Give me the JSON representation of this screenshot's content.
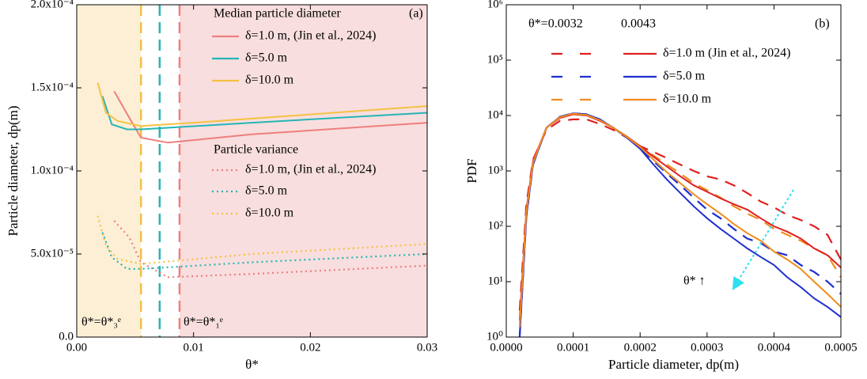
{
  "chart_data": [
    {
      "type": "line",
      "x_label": "θ*",
      "y_label": "Particle diameter, dp(m)",
      "xlim": [
        0,
        0.03
      ],
      "ylim": [
        0,
        0.0002
      ],
      "xticks": [
        {
          "value": 0,
          "label": "0.00"
        },
        0.01,
        0.02,
        0.03
      ],
      "yticks": [
        {
          "value": 0,
          "label": "0.0"
        },
        {
          "value": 5e-05,
          "label": "5.0x10⁻⁵"
        },
        {
          "value": 0.0001,
          "label": "1.0x10⁻⁴"
        },
        {
          "value": 0.00015,
          "label": "1.5x10⁻⁴"
        },
        {
          "value": 0.0002,
          "label": "2.0x10⁻⁴"
        }
      ],
      "legend_groups": [
        "Median particle diameter",
        "Particle variance"
      ],
      "annotations": [
        "(a)",
        "θ*=θ*₃ᵉ",
        "θ*=θ*₁ᵉ"
      ],
      "regions": [
        {
          "x": [
            0,
            0.0055
          ],
          "color": "#fcefd6"
        },
        {
          "x": [
            0.0088,
            0.03
          ],
          "color": "#f8dede"
        }
      ],
      "vlines": [
        {
          "x": 0.0055,
          "color": "#f2c04a"
        },
        {
          "x": 0.0071,
          "color": "#26b5b5"
        },
        {
          "x": 0.0088,
          "color": "#ee7f7f"
        }
      ],
      "series": [
        {
          "name": "δ=1.0 m, (Jin et al., 2024)",
          "color": "#ee7f7f",
          "dash": "solid",
          "group": 0,
          "x": [
            0.0032,
            0.0045,
            0.0055,
            0.0078,
            0.015,
            0.03
          ],
          "values": [
            0.000148,
            0.000132,
            0.00012,
            0.000117,
            0.000122,
            0.000129
          ]
        },
        {
          "name": "δ=5.0 m",
          "color": "#26b5b5",
          "dash": "solid",
          "group": 0,
          "x": [
            0.0022,
            0.003,
            0.0043,
            0.0055,
            0.015,
            0.03
          ],
          "values": [
            0.000145,
            0.000128,
            0.000125,
            0.000125,
            0.000129,
            0.000135
          ]
        },
        {
          "name": "δ=10.0 m",
          "color": "#f5c242",
          "dash": "solid",
          "group": 0,
          "x": [
            0.0018,
            0.0025,
            0.0035,
            0.0055,
            0.01,
            0.03
          ],
          "values": [
            0.000153,
            0.000135,
            0.00013,
            0.000127,
            0.000129,
            0.000139
          ]
        },
        {
          "name": "δ=1.0 m, (Jin et al., 2024)",
          "color": "#ee7f7f",
          "dash": "dot",
          "group": 1,
          "x": [
            0.0032,
            0.0045,
            0.0055,
            0.0078,
            0.015,
            0.03
          ],
          "values": [
            7e-05,
            6e-05,
            4.5e-05,
            3.6e-05,
            3.8e-05,
            4.3e-05
          ]
        },
        {
          "name": "δ=5.0 m",
          "color": "#26b5b5",
          "dash": "dot",
          "group": 1,
          "x": [
            0.0022,
            0.003,
            0.0043,
            0.0055,
            0.015,
            0.03
          ],
          "values": [
            6.3e-05,
            4.8e-05,
            4.1e-05,
            4.1e-05,
            4.5e-05,
            5e-05
          ]
        },
        {
          "name": "δ=10.0 m",
          "color": "#f5c242",
          "dash": "dot",
          "group": 1,
          "x": [
            0.0018,
            0.0025,
            0.0035,
            0.0055,
            0.015,
            0.03
          ],
          "values": [
            7.3e-05,
            5.5e-05,
            4.7e-05,
            4.4e-05,
            5e-05,
            5.6e-05
          ]
        }
      ]
    },
    {
      "type": "line",
      "log_y": true,
      "x_label": "Particle  diameter, dp(m)",
      "y_label": "PDF",
      "xlim": [
        0,
        0.0005
      ],
      "ylim": [
        1,
        1000000
      ],
      "xticks": [
        {
          "value": 0,
          "label": "0.0000"
        },
        {
          "value": 0.0001,
          "label": "0.0001"
        },
        {
          "value": 0.0002,
          "label": "0.0002"
        },
        {
          "value": 0.0003,
          "label": "0.0003"
        },
        {
          "value": 0.0004,
          "label": "0.0004"
        },
        {
          "value": 0.0005,
          "label": "0.0005"
        }
      ],
      "yticks": [
        {
          "value": 1,
          "label": "10⁰"
        },
        {
          "value": 10,
          "label": "10¹"
        },
        {
          "value": 100,
          "label": "10²"
        },
        {
          "value": 1000,
          "label": "10³"
        },
        {
          "value": 10000,
          "label": "10⁴"
        },
        {
          "value": 100000,
          "label": "10⁵"
        },
        {
          "value": 1000000,
          "label": "10⁶"
        }
      ],
      "legend_headers": [
        "θ*=0.0032",
        "0.0043"
      ],
      "annotations": [
        "(b)",
        "θ* ↑"
      ],
      "x": [
        2e-05,
        3e-05,
        4e-05,
        6e-05,
        8e-05,
        0.0001,
        0.00012,
        0.00014,
        0.00016,
        0.00018,
        0.0002,
        0.00022,
        0.00024,
        0.00026,
        0.00028,
        0.0003,
        0.00032,
        0.00034,
        0.00036,
        0.00038,
        0.0004,
        0.00042,
        0.00044,
        0.00046,
        0.00048,
        0.0005
      ],
      "series": [
        {
          "color": "#e02020",
          "dash": "dash",
          "values": [
            3,
            250,
            1600,
            5500,
            8000,
            8500,
            8500,
            7000,
            5500,
            4000,
            2800,
            2200,
            1700,
            1300,
            1000,
            800,
            700,
            550,
            400,
            280,
            220,
            160,
            130,
            100,
            70,
            25
          ]
        },
        {
          "color": "#1f2fd0",
          "dash": "dash",
          "values": [
            1,
            150,
            1300,
            6000,
            9500,
            11000,
            10500,
            8500,
            6000,
            4000,
            2600,
            1500,
            900,
            550,
            330,
            200,
            140,
            90,
            60,
            50,
            35,
            30,
            20,
            15,
            10,
            6
          ]
        },
        {
          "color": "#f08c1e",
          "dash": "dash",
          "values": [
            1.5,
            180,
            1400,
            6000,
            9300,
            10800,
            10200,
            8200,
            6000,
            4100,
            2700,
            1900,
            1300,
            900,
            600,
            450,
            330,
            230,
            170,
            130,
            90,
            70,
            55,
            40,
            30,
            12
          ]
        },
        {
          "name": "δ=1.0 m (Jin et al., 2024)",
          "color": "#e02020",
          "dash": "solid",
          "values": [
            2,
            200,
            1500,
            6000,
            9000,
            10500,
            10000,
            8000,
            6000,
            4200,
            2800,
            1800,
            1200,
            800,
            550,
            420,
            320,
            250,
            200,
            140,
            100,
            80,
            60,
            40,
            30,
            18
          ]
        },
        {
          "name": "δ=5.0 m",
          "color": "#1f2fd0",
          "dash": "solid",
          "values": [
            1,
            150,
            1300,
            6000,
            9500,
            11000,
            10500,
            8500,
            6000,
            4000,
            2500,
            1300,
            700,
            400,
            230,
            140,
            90,
            60,
            40,
            28,
            20,
            12,
            8,
            5,
            3.5,
            2.3
          ]
        },
        {
          "name": "δ=10.0 m",
          "color": "#f08c1e",
          "dash": "solid",
          "values": [
            1.5,
            180,
            1400,
            6000,
            9300,
            10800,
            10200,
            8200,
            6000,
            4100,
            2700,
            1600,
            950,
            600,
            380,
            250,
            170,
            110,
            75,
            55,
            35,
            25,
            17,
            10,
            6,
            3.5
          ]
        }
      ]
    }
  ]
}
